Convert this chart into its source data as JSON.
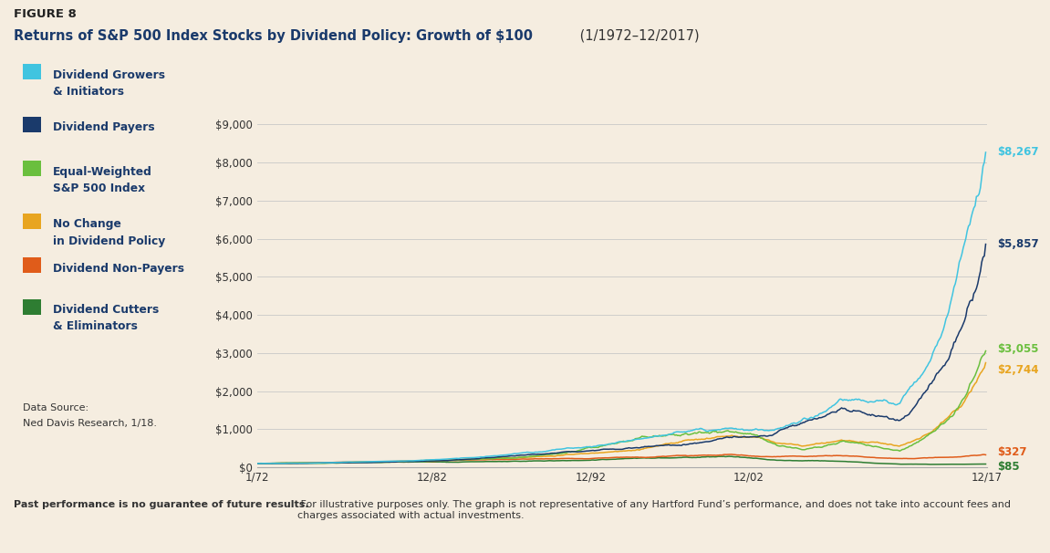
{
  "title_line1": "FIGURE 8",
  "title_line2": "Returns of S&P 500 Index Stocks by Dividend Policy: Growth of $100",
  "title_subtitle": "(1/1972–12/2017)",
  "background_color": "#f5ede0",
  "plot_bg_color": "#f5ede0",
  "grid_color": "#c8c8c8",
  "title_color": "#1a3a6b",
  "text_color": "#1a3a6b",
  "body_text_color": "#333333",
  "xtick_labels": [
    "1/72",
    "12/82",
    "12/92",
    "12/02",
    "12/17"
  ],
  "xtick_positions": [
    0,
    132,
    252,
    372,
    552
  ],
  "ytick_labels": [
    "$0",
    "$1,000",
    "$2,000",
    "$3,000",
    "$4,000",
    "$5,000",
    "$6,000",
    "$7,000",
    "$8,000",
    "$9,000"
  ],
  "ytick_values": [
    0,
    1000,
    2000,
    3000,
    4000,
    5000,
    6000,
    7000,
    8000,
    9000
  ],
  "series_order": [
    "growers",
    "payers",
    "equal_weighted",
    "no_change",
    "non_payers",
    "cutters"
  ],
  "series": {
    "growers": {
      "label1": "Dividend Growers",
      "label2": "& Initiators",
      "color": "#40c4e0",
      "end_value": "$8,267",
      "final": 8267,
      "zorder": 6
    },
    "payers": {
      "label1": "Dividend Payers",
      "label2": "",
      "color": "#1a3a6b",
      "end_value": "$5,857",
      "final": 5857,
      "zorder": 5
    },
    "equal_weighted": {
      "label1": "Equal-Weighted",
      "label2": "S&P 500 Index",
      "color": "#6abf3e",
      "end_value": "$3,055",
      "final": 3055,
      "zorder": 4
    },
    "no_change": {
      "label1": "No Change",
      "label2": "in Dividend Policy",
      "color": "#e8a520",
      "end_value": "$2,744",
      "final": 2744,
      "zorder": 3
    },
    "non_payers": {
      "label1": "Dividend Non-Payers",
      "label2": "",
      "color": "#e05c1a",
      "end_value": "$327",
      "final": 327,
      "zorder": 2
    },
    "cutters": {
      "label1": "Dividend Cutters",
      "label2": "& Eliminators",
      "color": "#2e7d32",
      "end_value": "$85",
      "final": 85,
      "zorder": 1
    }
  },
  "footnote_bold": "Past performance is no guarantee of future results.",
  "footnote_normal": " For illustrative purposes only. The graph is not representative of any Hartford Fund’s performance, and does not take into account fees and charges associated with actual investments.",
  "data_source_line1": "Data Source:",
  "data_source_line2": "Ned Davis Research, 1/18.",
  "ylim": [
    0,
    9000
  ],
  "n_months": 552
}
